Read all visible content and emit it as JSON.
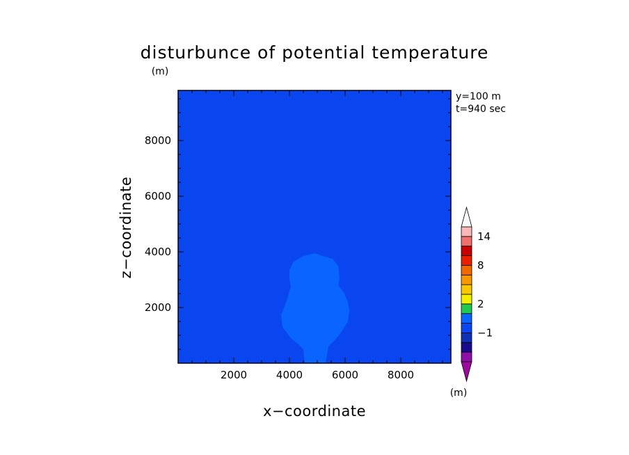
{
  "chart_data": {
    "type": "heatmap",
    "title": "disturbunce of potential temperature",
    "unit_label": "(m)",
    "colorbar_unit_label": "(m)",
    "xlabel": "x−coordinate",
    "ylabel": "z−coordinate",
    "xlim": [
      0,
      9800
    ],
    "ylim": [
      0,
      9800
    ],
    "x_ticks": [
      2000,
      4000,
      6000,
      8000
    ],
    "y_ticks": [
      2000,
      4000,
      6000,
      8000
    ],
    "x_tick_labels": [
      "2000",
      "4000",
      "6000",
      "8000"
    ],
    "y_tick_labels": [
      "2000",
      "4000",
      "6000",
      "8000"
    ],
    "annotations": [
      "y=100  m",
      "t=940  sec"
    ],
    "background_level_color": "#0a46f0",
    "anomaly_color": "#0a64ff",
    "anomaly_outline": [
      [
        4550,
        0
      ],
      [
        4500,
        500
      ],
      [
        4300,
        700
      ],
      [
        4050,
        900
      ],
      [
        3750,
        1300
      ],
      [
        3700,
        1750
      ],
      [
        3850,
        2100
      ],
      [
        3950,
        2400
      ],
      [
        4050,
        2750
      ],
      [
        4000,
        3050
      ],
      [
        4000,
        3350
      ],
      [
        4150,
        3650
      ],
      [
        4500,
        3850
      ],
      [
        4900,
        3950
      ],
      [
        5200,
        3850
      ],
      [
        5550,
        3750
      ],
      [
        5750,
        3500
      ],
      [
        5800,
        3050
      ],
      [
        5750,
        2800
      ],
      [
        5950,
        2550
      ],
      [
        6100,
        2200
      ],
      [
        6150,
        1900
      ],
      [
        6100,
        1500
      ],
      [
        5850,
        1100
      ],
      [
        5650,
        850
      ],
      [
        5400,
        600
      ],
      [
        5350,
        300
      ],
      [
        5300,
        0
      ]
    ],
    "colorbar": {
      "levels": [
        -4,
        -3,
        -2,
        -1,
        0,
        1,
        2,
        3,
        4,
        6,
        8,
        10,
        12,
        14,
        16
      ],
      "colors": [
        "#8b0fa8",
        "#1a0b8c",
        "#1030b8",
        "#0a46f0",
        "#0a64ff",
        "#20c850",
        "#f0f000",
        "#f8c800",
        "#f89800",
        "#f06800",
        "#e82000",
        "#c80000",
        "#f07070",
        "#f8b8b8"
      ],
      "under_color": "#9c0c9c",
      "over_color": "#f8f8f8",
      "labels": [
        {
          "text": "−1",
          "value": -1
        },
        {
          "text": "2",
          "value": 2
        },
        {
          "text": "8",
          "value": 8
        },
        {
          "text": "14",
          "value": 14
        }
      ]
    }
  }
}
